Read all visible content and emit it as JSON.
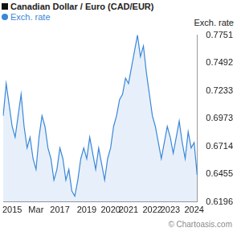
{
  "chart_data": {
    "type": "line",
    "title": "Canadian Dollar / Euro (CAD/EUR)",
    "y_label": "Exch. rate",
    "source": "© Chartoasis.com",
    "categories": [
      null,
      null,
      null,
      "2015",
      null,
      null,
      null,
      null,
      null,
      null,
      null,
      "Mar",
      null,
      null,
      null,
      null,
      null,
      null,
      null,
      "2017",
      null,
      null,
      null,
      null,
      null,
      null,
      null,
      null,
      "2019",
      null,
      null,
      null,
      null,
      null,
      null,
      null,
      "2020",
      null,
      null,
      null,
      null,
      null,
      "2021",
      null,
      null,
      null,
      null,
      null,
      null,
      null,
      "2022",
      null,
      null,
      null,
      null,
      null,
      "2023",
      null,
      null,
      null,
      null,
      null,
      null,
      null,
      "2024",
      null
    ],
    "series": [
      {
        "name": "Exch. rate",
        "color": "#3a87d9",
        "values": [
          0.7,
          0.73,
          0.71,
          0.69,
          0.68,
          0.7,
          0.72,
          0.69,
          0.67,
          0.68,
          0.66,
          0.65,
          0.68,
          0.7,
          0.69,
          0.67,
          0.66,
          0.64,
          0.65,
          0.67,
          0.66,
          0.64,
          0.65,
          0.63,
          0.625,
          0.64,
          0.66,
          0.67,
          0.66,
          0.68,
          0.665,
          0.65,
          0.67,
          0.655,
          0.64,
          0.66,
          0.67,
          0.69,
          0.7,
          0.715,
          0.72,
          0.735,
          0.73,
          0.745,
          0.76,
          0.775,
          0.755,
          0.765,
          0.74,
          0.72,
          0.7,
          0.69,
          0.675,
          0.66,
          0.675,
          0.69,
          0.68,
          0.665,
          0.68,
          0.695,
          0.675,
          0.66,
          0.685,
          0.67,
          0.675,
          0.645
        ]
      }
    ],
    "ylim": [
      0.6196,
      0.7751
    ],
    "yticks": [
      0.6196,
      0.6455,
      0.6714,
      0.6973,
      0.7233,
      0.7492,
      0.7751
    ],
    "grid": false
  }
}
